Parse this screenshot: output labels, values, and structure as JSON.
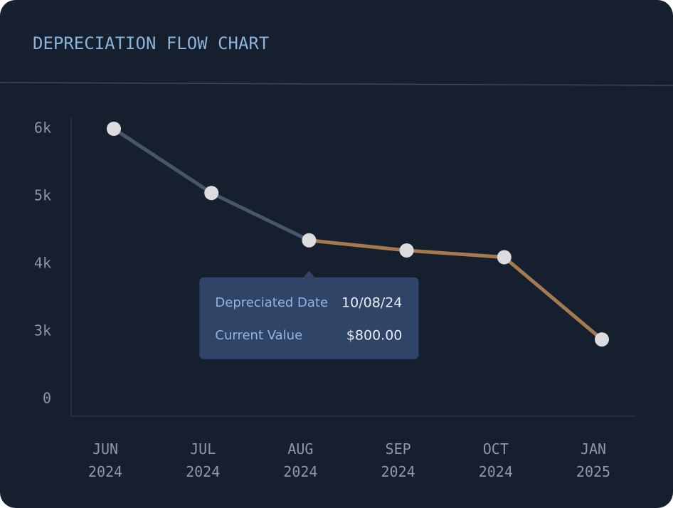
{
  "chart_data": {
    "type": "line",
    "title": "DEPRECIATION FLOW CHART",
    "categories": [
      "JUN 2024",
      "JUL 2024",
      "AUG 2024",
      "SEP 2024",
      "OCT 2024",
      "JAN 2025"
    ],
    "values": [
      6000,
      5050,
      4350,
      4200,
      4100,
      2650
    ],
    "yticks": [
      {
        "value": 0,
        "label": "0"
      },
      {
        "value": 3000,
        "label": "3k"
      },
      {
        "value": 4000,
        "label": "4k"
      },
      {
        "value": 5000,
        "label": "5k"
      },
      {
        "value": 6000,
        "label": "6k"
      }
    ],
    "color": "#46566b",
    "highlight_color": "#a57a50",
    "highlight_start": 2,
    "point_color": "#dcdcdf",
    "tooltip": {
      "anchor_index": 2,
      "rows": [
        [
          "Depreciated Date",
          "10/08/24"
        ],
        [
          "Current Value",
          "$800.00"
        ]
      ]
    }
  }
}
